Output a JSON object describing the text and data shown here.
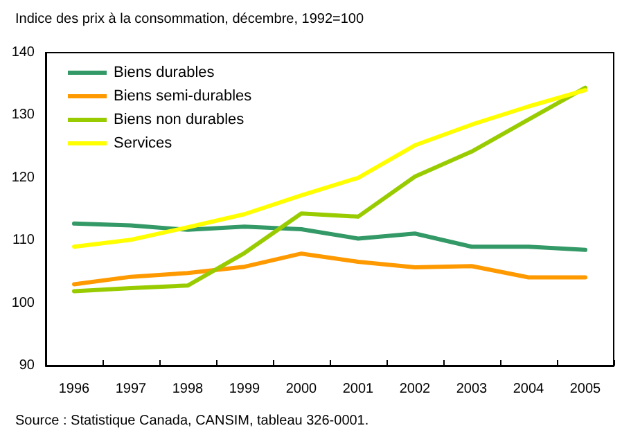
{
  "chart_data": {
    "type": "line",
    "title": "Indice des prix à la consommation, décembre, 1992=100",
    "categories": [
      "1996",
      "1997",
      "1998",
      "1999",
      "2000",
      "2001",
      "2002",
      "2003",
      "2004",
      "2005"
    ],
    "series": [
      {
        "name": "Biens durables",
        "color": "#339966",
        "values": [
          112.7,
          112.4,
          111.7,
          112.2,
          111.8,
          110.3,
          111.1,
          109,
          109,
          108.5
        ]
      },
      {
        "name": "Biens semi-durables",
        "color": "#ff9900",
        "values": [
          103,
          104.2,
          104.8,
          105.8,
          107.9,
          106.6,
          105.7,
          105.9,
          104.1,
          104.1
        ]
      },
      {
        "name": "Biens non durables",
        "color": "#99cc00",
        "values": [
          101.9,
          102.4,
          102.8,
          108,
          114.3,
          113.8,
          120.2,
          124.2,
          129.3,
          134.4
        ]
      },
      {
        "name": "Services",
        "color": "#ffff00",
        "values": [
          109,
          110.1,
          112.1,
          114.2,
          117.2,
          120,
          125.2,
          128.5,
          131.4,
          134
        ]
      }
    ],
    "ylim": [
      90,
      140
    ],
    "yticks": [
      90,
      100,
      110,
      120,
      130,
      140
    ],
    "grid": false,
    "legend": "top left",
    "marker": "none",
    "line_style": "solid",
    "annotations": [
      "Source : Statistique Canada, CANSIM, tableau 326-0001."
    ]
  }
}
